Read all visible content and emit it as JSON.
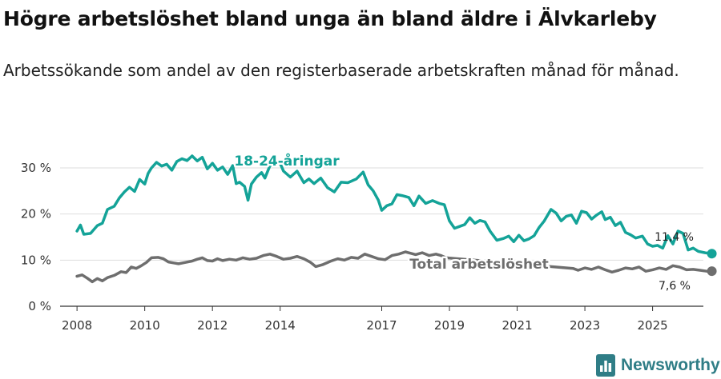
{
  "title": "Högre arbetslöshet bland unga än bland äldre i Älvkarleby",
  "subtitle": "Arbetssökande som andel av den registerbaserade arbetskraften månad för månad.",
  "brand": {
    "name": "Newsworthy",
    "icon": "newsworthy-logo-icon"
  },
  "colors": {
    "youth": "#14a398",
    "total": "#6e6e6e",
    "grid": "#dddddd",
    "axis": "#333333"
  },
  "chart_data": {
    "type": "line",
    "title": "Högre arbetslöshet bland unga än bland äldre i Älvkarleby",
    "xlabel": "",
    "ylabel": "",
    "xlim": [
      2007.5,
      2026.5
    ],
    "ylim": [
      0,
      35
    ],
    "x_ticks": [
      2008,
      2010,
      2012,
      2014,
      2017,
      2019,
      2021,
      2023,
      2025
    ],
    "x_tick_labels": [
      "2008",
      "2010",
      "2012",
      "2014",
      "2017",
      "2019",
      "2021",
      "2023",
      "2025"
    ],
    "y_ticks": [
      0,
      10,
      20,
      30
    ],
    "y_tick_labels": [
      "0 %",
      "10 %",
      "20 %",
      "30 %"
    ],
    "grid": true,
    "series": [
      {
        "name": "18-24-åringar",
        "label": "18-24-åringar",
        "end_label": "11,4 %",
        "points": [
          [
            2008.0,
            16.3
          ],
          [
            2008.1,
            17.6
          ],
          [
            2008.2,
            15.6
          ],
          [
            2008.4,
            15.8
          ],
          [
            2008.6,
            17.5
          ],
          [
            2008.75,
            18.0
          ],
          [
            2008.9,
            21.0
          ],
          [
            2009.1,
            21.7
          ],
          [
            2009.25,
            23.5
          ],
          [
            2009.4,
            24.8
          ],
          [
            2009.55,
            25.8
          ],
          [
            2009.7,
            24.9
          ],
          [
            2009.85,
            27.5
          ],
          [
            2010.0,
            26.5
          ],
          [
            2010.1,
            28.8
          ],
          [
            2010.2,
            30.0
          ],
          [
            2010.35,
            31.2
          ],
          [
            2010.5,
            30.4
          ],
          [
            2010.65,
            30.8
          ],
          [
            2010.8,
            29.5
          ],
          [
            2010.95,
            31.4
          ],
          [
            2011.1,
            32.0
          ],
          [
            2011.25,
            31.6
          ],
          [
            2011.4,
            32.6
          ],
          [
            2011.55,
            31.5
          ],
          [
            2011.7,
            32.3
          ],
          [
            2011.85,
            29.8
          ],
          [
            2012.0,
            31.0
          ],
          [
            2012.15,
            29.5
          ],
          [
            2012.3,
            30.2
          ],
          [
            2012.45,
            28.6
          ],
          [
            2012.6,
            30.5
          ],
          [
            2012.7,
            26.6
          ],
          [
            2012.8,
            26.9
          ],
          [
            2012.95,
            26.0
          ],
          [
            2013.05,
            23.0
          ],
          [
            2013.15,
            26.5
          ],
          [
            2013.3,
            28.0
          ],
          [
            2013.45,
            29.0
          ],
          [
            2013.55,
            27.8
          ],
          [
            2013.7,
            30.5
          ],
          [
            2014.0,
            31.0
          ],
          [
            2014.1,
            29.3
          ],
          [
            2014.3,
            28.0
          ],
          [
            2014.5,
            29.3
          ],
          [
            2014.7,
            26.8
          ],
          [
            2014.85,
            27.6
          ],
          [
            2015.0,
            26.6
          ],
          [
            2015.2,
            27.8
          ],
          [
            2015.4,
            25.7
          ],
          [
            2015.6,
            24.8
          ],
          [
            2015.8,
            26.9
          ],
          [
            2016.0,
            26.8
          ],
          [
            2016.25,
            27.6
          ],
          [
            2016.45,
            29.1
          ],
          [
            2016.6,
            26.3
          ],
          [
            2016.75,
            25.0
          ],
          [
            2016.9,
            23.0
          ],
          [
            2017.0,
            20.8
          ],
          [
            2017.15,
            21.8
          ],
          [
            2017.3,
            22.2
          ],
          [
            2017.45,
            24.2
          ],
          [
            2017.6,
            24.0
          ],
          [
            2017.8,
            23.6
          ],
          [
            2017.95,
            21.8
          ],
          [
            2018.1,
            23.9
          ],
          [
            2018.3,
            22.3
          ],
          [
            2018.5,
            22.9
          ],
          [
            2018.7,
            22.3
          ],
          [
            2018.85,
            22.0
          ],
          [
            2019.0,
            18.5
          ],
          [
            2019.15,
            16.9
          ],
          [
            2019.3,
            17.3
          ],
          [
            2019.45,
            17.7
          ],
          [
            2019.6,
            19.2
          ],
          [
            2019.75,
            18.0
          ],
          [
            2019.9,
            18.6
          ],
          [
            2020.05,
            18.3
          ],
          [
            2020.2,
            16.3
          ],
          [
            2020.4,
            14.3
          ],
          [
            2020.6,
            14.7
          ],
          [
            2020.75,
            15.2
          ],
          [
            2020.9,
            14.0
          ],
          [
            2021.05,
            15.4
          ],
          [
            2021.2,
            14.2
          ],
          [
            2021.35,
            14.6
          ],
          [
            2021.5,
            15.3
          ],
          [
            2021.65,
            17.1
          ],
          [
            2021.8,
            18.5
          ],
          [
            2022.0,
            21.0
          ],
          [
            2022.15,
            20.2
          ],
          [
            2022.3,
            18.5
          ],
          [
            2022.45,
            19.5
          ],
          [
            2022.6,
            19.8
          ],
          [
            2022.75,
            18.0
          ],
          [
            2022.9,
            20.6
          ],
          [
            2023.05,
            20.3
          ],
          [
            2023.2,
            18.9
          ],
          [
            2023.35,
            19.8
          ],
          [
            2023.5,
            20.5
          ],
          [
            2023.6,
            18.8
          ],
          [
            2023.75,
            19.3
          ],
          [
            2023.9,
            17.5
          ],
          [
            2024.05,
            18.2
          ],
          [
            2024.2,
            16.0
          ],
          [
            2024.35,
            15.5
          ],
          [
            2024.5,
            14.8
          ],
          [
            2024.7,
            15.2
          ],
          [
            2024.85,
            13.5
          ],
          [
            2025.0,
            13.0
          ],
          [
            2025.15,
            13.2
          ],
          [
            2025.3,
            12.6
          ],
          [
            2025.45,
            15.3
          ],
          [
            2025.6,
            13.5
          ],
          [
            2025.75,
            16.3
          ],
          [
            2025.9,
            15.8
          ],
          [
            2026.05,
            12.2
          ],
          [
            2026.2,
            12.6
          ],
          [
            2026.35,
            11.9
          ],
          [
            2026.55,
            11.6
          ],
          [
            2026.75,
            11.4
          ]
        ]
      },
      {
        "name": "Total arbetslöshet",
        "label": "Total arbetslöshet",
        "end_label": "7,6 %",
        "points": [
          [
            2008.0,
            6.5
          ],
          [
            2008.15,
            6.8
          ],
          [
            2008.3,
            6.1
          ],
          [
            2008.45,
            5.3
          ],
          [
            2008.6,
            6.0
          ],
          [
            2008.75,
            5.5
          ],
          [
            2008.9,
            6.2
          ],
          [
            2009.1,
            6.7
          ],
          [
            2009.3,
            7.5
          ],
          [
            2009.45,
            7.3
          ],
          [
            2009.6,
            8.5
          ],
          [
            2009.75,
            8.2
          ],
          [
            2009.9,
            8.8
          ],
          [
            2010.05,
            9.5
          ],
          [
            2010.2,
            10.5
          ],
          [
            2010.4,
            10.6
          ],
          [
            2010.55,
            10.3
          ],
          [
            2010.7,
            9.6
          ],
          [
            2010.85,
            9.4
          ],
          [
            2011.0,
            9.2
          ],
          [
            2011.2,
            9.5
          ],
          [
            2011.4,
            9.8
          ],
          [
            2011.55,
            10.2
          ],
          [
            2011.7,
            10.5
          ],
          [
            2011.85,
            9.9
          ],
          [
            2012.0,
            9.8
          ],
          [
            2012.15,
            10.3
          ],
          [
            2012.3,
            9.9
          ],
          [
            2012.5,
            10.2
          ],
          [
            2012.7,
            10.0
          ],
          [
            2012.9,
            10.5
          ],
          [
            2013.1,
            10.2
          ],
          [
            2013.3,
            10.4
          ],
          [
            2013.5,
            11.0
          ],
          [
            2013.7,
            11.3
          ],
          [
            2013.9,
            10.8
          ],
          [
            2014.1,
            10.2
          ],
          [
            2014.3,
            10.4
          ],
          [
            2014.5,
            10.8
          ],
          [
            2014.7,
            10.3
          ],
          [
            2014.9,
            9.5
          ],
          [
            2015.05,
            8.6
          ],
          [
            2015.25,
            9.0
          ],
          [
            2015.5,
            9.8
          ],
          [
            2015.7,
            10.3
          ],
          [
            2015.9,
            10.0
          ],
          [
            2016.1,
            10.6
          ],
          [
            2016.3,
            10.4
          ],
          [
            2016.5,
            11.3
          ],
          [
            2016.7,
            10.8
          ],
          [
            2016.9,
            10.3
          ],
          [
            2017.1,
            10.1
          ],
          [
            2017.3,
            11.0
          ],
          [
            2017.5,
            11.3
          ],
          [
            2017.7,
            11.8
          ],
          [
            2017.85,
            11.5
          ],
          [
            2018.0,
            11.2
          ],
          [
            2018.2,
            11.6
          ],
          [
            2018.4,
            11.0
          ],
          [
            2018.6,
            11.3
          ],
          [
            2018.75,
            11.0
          ],
          [
            2018.9,
            10.5
          ],
          [
            2022.65,
            8.2
          ],
          [
            2022.8,
            7.8
          ],
          [
            2023.0,
            8.3
          ],
          [
            2023.2,
            8.0
          ],
          [
            2023.4,
            8.5
          ],
          [
            2023.6,
            7.9
          ],
          [
            2023.8,
            7.4
          ],
          [
            2024.0,
            7.8
          ],
          [
            2024.2,
            8.3
          ],
          [
            2024.4,
            8.1
          ],
          [
            2024.6,
            8.5
          ],
          [
            2024.8,
            7.6
          ],
          [
            2025.0,
            7.9
          ],
          [
            2025.2,
            8.3
          ],
          [
            2025.4,
            8.0
          ],
          [
            2025.6,
            8.8
          ],
          [
            2025.8,
            8.5
          ],
          [
            2026.0,
            7.9
          ],
          [
            2026.2,
            8.0
          ],
          [
            2026.4,
            7.8
          ],
          [
            2026.6,
            7.6
          ],
          [
            2026.75,
            7.6
          ]
        ]
      }
    ]
  }
}
